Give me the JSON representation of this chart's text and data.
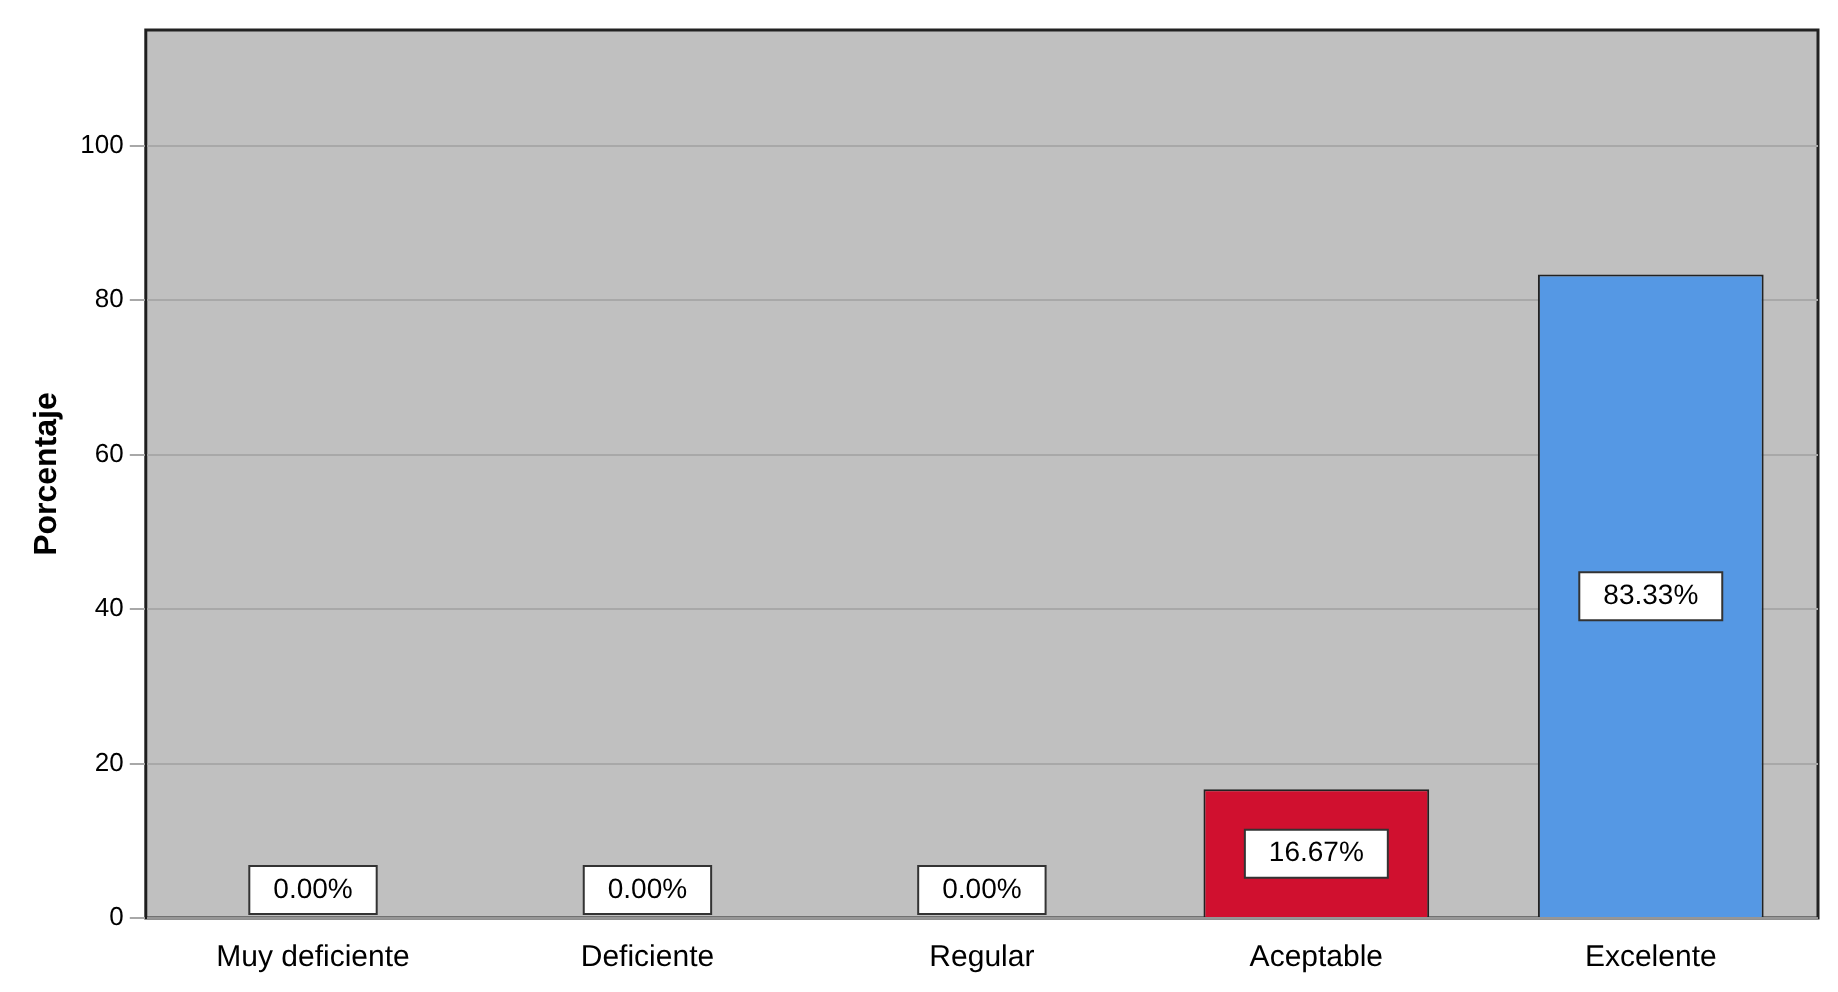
{
  "chart_data": {
    "type": "bar",
    "ylabel": "Porcentaje",
    "categories": [
      "Muy deficiente",
      "Deficiente",
      "Regular",
      "Aceptable",
      "Excelente"
    ],
    "values": [
      0,
      0,
      0,
      16.67,
      83.33
    ],
    "colors": [
      "#c8c8c8",
      "#c8c8c8",
      "#c8c8c8",
      "#d0102f",
      "#5598e4"
    ],
    "value_labels": [
      "0.00%",
      "0.00%",
      "0.00%",
      "16.67%",
      "83.33%"
    ],
    "ylim": [
      0,
      115
    ],
    "yticks": [
      0,
      20,
      40,
      60,
      80,
      100
    ],
    "grid": "y",
    "legend": false
  }
}
